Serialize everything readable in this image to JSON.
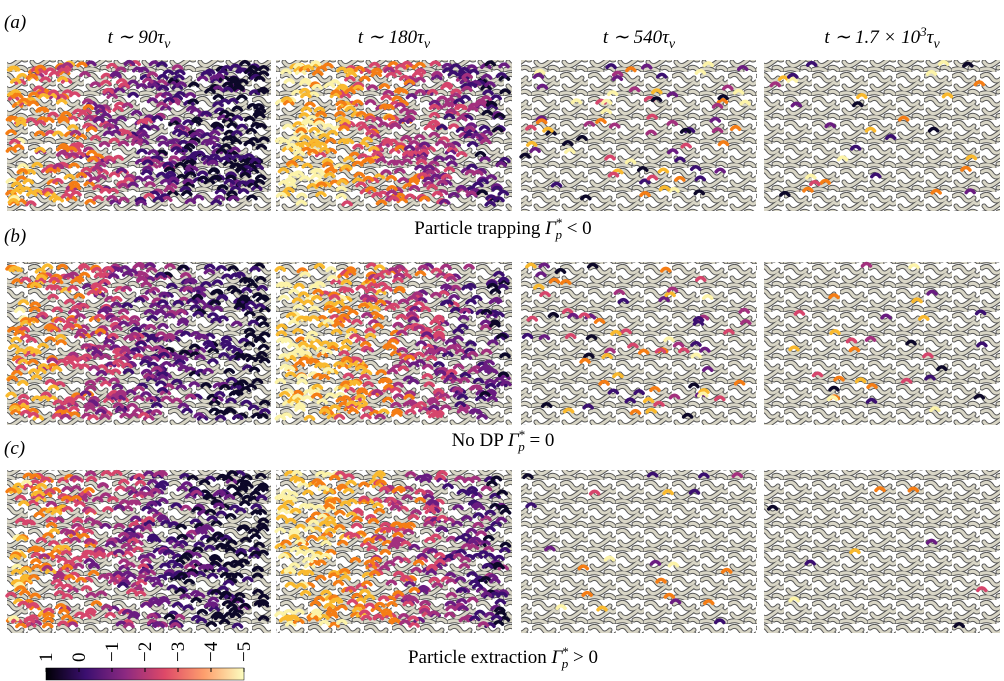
{
  "panel_labels": [
    "(a)",
    "(b)",
    "(c)"
  ],
  "column_headers": [
    {
      "main": "t ∼ 90τ",
      "sub": "ν"
    },
    {
      "main": "t ∼ 180τ",
      "sub": "ν"
    },
    {
      "main": "t ∼ 540τ",
      "sub": "ν"
    },
    {
      "main": "t ∼ 1.7 × 10",
      "sup": "3",
      "after": "τ",
      "sub": "ν"
    }
  ],
  "row_captions": [
    {
      "text": "Particle trapping ",
      "symbol": "Γ",
      "sup": "*",
      "sub": "p",
      "rest": " < 0"
    },
    {
      "text": "No DP ",
      "symbol": "Γ",
      "sup": "*",
      "sub": "p",
      "rest": " = 0"
    },
    {
      "text": "Particle extraction ",
      "symbol": "Γ",
      "sup": "*",
      "sub": "p",
      "rest": " > 0"
    }
  ],
  "colorbar": {
    "lim": [
      1,
      -5
    ],
    "ticks": [
      1,
      0,
      {
        "value": -1,
        "label": "−1"
      },
      {
        "value": -2,
        "label": "−2"
      },
      {
        "value": -3,
        "label": "−3"
      },
      {
        "value": -4,
        "label": "−4"
      },
      {
        "value": -5,
        "label": "−5"
      }
    ]
  }
}
